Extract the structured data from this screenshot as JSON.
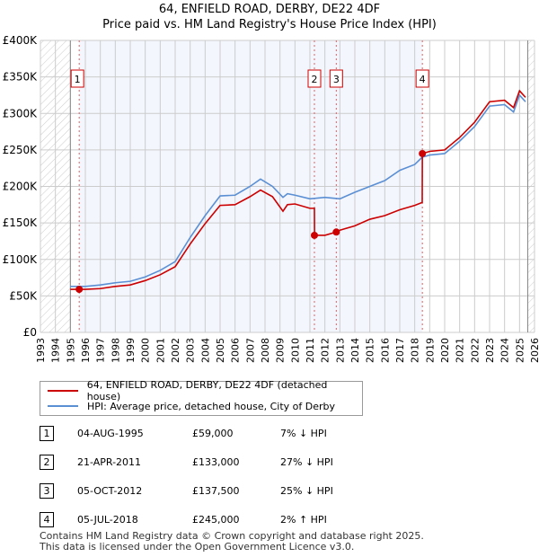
{
  "chart_data": {
    "type": "line",
    "title": "64, ENFIELD ROAD, DERBY, DE22 4DF",
    "subtitle": "Price paid vs. HM Land Registry's House Price Index (HPI)",
    "xlim": [
      1993,
      2026
    ],
    "ylim": [
      0,
      400000
    ],
    "yticks": [
      {
        "v": 0,
        "label": "£0"
      },
      {
        "v": 50000,
        "label": "£50K"
      },
      {
        "v": 100000,
        "label": "£100K"
      },
      {
        "v": 150000,
        "label": "£150K"
      },
      {
        "v": 200000,
        "label": "£200K"
      },
      {
        "v": 250000,
        "label": "£250K"
      },
      {
        "v": 300000,
        "label": "£300K"
      },
      {
        "v": 350000,
        "label": "£350K"
      },
      {
        "v": 400000,
        "label": "£400K"
      }
    ],
    "xticks": [
      "1993",
      "1994",
      "1995",
      "1996",
      "1997",
      "1998",
      "1999",
      "2000",
      "2001",
      "2002",
      "2003",
      "2004",
      "2005",
      "2006",
      "2007",
      "2008",
      "2009",
      "2010",
      "2011",
      "2012",
      "2013",
      "2014",
      "2015",
      "2016",
      "2017",
      "2018",
      "2019",
      "2020",
      "2021",
      "2022",
      "2023",
      "2024",
      "2025",
      "2026"
    ],
    "series": [
      {
        "name": "HPI: Average price, detached house, City of Derby",
        "color": "#5b8fd4",
        "x": [
          1995.0,
          1996,
          1997,
          1998,
          1999,
          2000,
          2001,
          2002,
          2003,
          2004,
          2005,
          2006,
          2007,
          2007.7,
          2008.5,
          2009.2,
          2009.5,
          2010,
          2011,
          2012,
          2013,
          2014,
          2015,
          2016,
          2017,
          2018,
          2018.5,
          2019,
          2020,
          2021,
          2022,
          2023,
          2024,
          2024.6,
          2025,
          2025.4
        ],
        "y": [
          63000,
          63000,
          65000,
          68000,
          70000,
          76000,
          85000,
          97000,
          130000,
          160000,
          187000,
          188000,
          200000,
          210000,
          200000,
          185000,
          190000,
          188000,
          183000,
          185000,
          183000,
          192000,
          200000,
          208000,
          222000,
          230000,
          240000,
          243000,
          245000,
          262000,
          282000,
          310000,
          312000,
          302000,
          325000,
          316000
        ]
      },
      {
        "name": "64, ENFIELD ROAD, DERBY, DE22 4DF (detached house)",
        "color": "#cc0000",
        "x": [
          1995.0,
          1996,
          1997,
          1998,
          1999,
          2000,
          2001,
          2002,
          2003,
          2004,
          2005,
          2006,
          2007,
          2007.7,
          2008.5,
          2009.2,
          2009.5,
          2010,
          2011,
          2011.3,
          2011.31,
          2012,
          2012.76,
          2013,
          2014,
          2015,
          2016,
          2017,
          2018,
          2018.5,
          2018.51,
          2019,
          2020,
          2021,
          2022,
          2023,
          2024,
          2024.6,
          2025,
          2025.4
        ],
        "y": [
          59000,
          59000,
          60000,
          63000,
          65000,
          71000,
          79000,
          90000,
          121000,
          149000,
          174000,
          175000,
          186000,
          195000,
          186000,
          166000,
          175000,
          176000,
          170000,
          170000,
          133000,
          133000,
          137500,
          140000,
          146000,
          155000,
          160000,
          168000,
          174000,
          178000,
          245000,
          248000,
          250000,
          267000,
          288000,
          316000,
          318000,
          308000,
          331000,
          322000
        ]
      }
    ],
    "sales": [
      {
        "n": "1",
        "x": 1995.59,
        "y": 59000
      },
      {
        "n": "2",
        "x": 2011.3,
        "y": 133000
      },
      {
        "n": "3",
        "x": 2012.76,
        "y": 137500
      },
      {
        "n": "4",
        "x": 2018.51,
        "y": 245000
      }
    ],
    "legend": "below"
  },
  "legend": {
    "price": "64, ENFIELD ROAD, DERBY, DE22 4DF (detached house)",
    "hpi": "HPI: Average price, detached house, City of Derby"
  },
  "table": [
    {
      "n": "1",
      "date": "04-AUG-1995",
      "price": "£59,000",
      "diff": "7% ↓ HPI"
    },
    {
      "n": "2",
      "date": "21-APR-2011",
      "price": "£133,000",
      "diff": "27% ↓ HPI"
    },
    {
      "n": "3",
      "date": "05-OCT-2012",
      "price": "£137,500",
      "diff": "25% ↓ HPI"
    },
    {
      "n": "4",
      "date": "05-JUL-2018",
      "price": "£245,000",
      "diff": "2% ↑ HPI"
    }
  ],
  "footer": {
    "line1": "Contains HM Land Registry data © Crown copyright and database right 2025.",
    "line2": "This data is licensed under the Open Government Licence v3.0."
  }
}
